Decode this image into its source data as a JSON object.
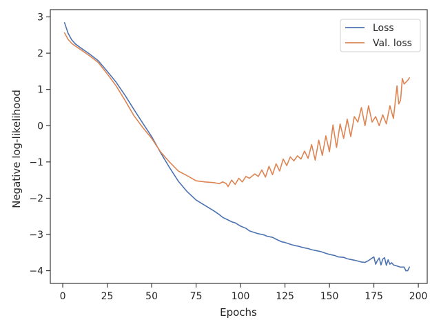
{
  "chart_data": {
    "type": "line",
    "title": "",
    "xlabel": "Epochs",
    "ylabel": "Negative log-likelihood",
    "xlim": [
      -7,
      205
    ],
    "ylim": [
      -4.35,
      3.2
    ],
    "xticks": [
      0,
      25,
      50,
      75,
      100,
      125,
      150,
      175,
      200
    ],
    "yticks": [
      -4,
      -3,
      -2,
      -1,
      0,
      1,
      2,
      3
    ],
    "xtick_labels": [
      "0",
      "25",
      "50",
      "75",
      "100",
      "125",
      "150",
      "175",
      "200"
    ],
    "ytick_labels": [
      "−4",
      "−3",
      "−2",
      "−1",
      "0",
      "1",
      "2",
      "3"
    ],
    "grid": false,
    "legend": "top-right",
    "series": [
      {
        "name": "Loss",
        "color": "#4c72b0",
        "x": [
          1,
          3,
          5,
          7,
          10,
          15,
          20,
          25,
          30,
          35,
          40,
          45,
          50,
          55,
          60,
          65,
          70,
          75,
          80,
          85,
          88,
          90,
          93,
          95,
          97,
          100,
          103,
          105,
          108,
          110,
          113,
          115,
          118,
          120,
          123,
          125,
          128,
          130,
          133,
          135,
          138,
          140,
          143,
          145,
          148,
          150,
          153,
          155,
          158,
          160,
          163,
          165,
          168,
          170,
          172,
          174,
          175,
          176,
          177,
          178,
          179,
          180,
          181,
          182,
          183,
          184,
          185,
          186,
          188,
          190,
          192,
          193,
          194,
          195
        ],
        "y": [
          2.84,
          2.55,
          2.37,
          2.26,
          2.15,
          1.98,
          1.79,
          1.5,
          1.2,
          0.84,
          0.45,
          0.07,
          -0.3,
          -0.74,
          -1.15,
          -1.53,
          -1.82,
          -2.05,
          -2.2,
          -2.35,
          -2.45,
          -2.53,
          -2.6,
          -2.65,
          -2.68,
          -2.77,
          -2.83,
          -2.9,
          -2.95,
          -2.98,
          -3.01,
          -3.05,
          -3.08,
          -3.13,
          -3.2,
          -3.22,
          -3.27,
          -3.3,
          -3.33,
          -3.36,
          -3.39,
          -3.42,
          -3.45,
          -3.47,
          -3.52,
          -3.55,
          -3.58,
          -3.62,
          -3.63,
          -3.67,
          -3.7,
          -3.72,
          -3.76,
          -3.77,
          -3.72,
          -3.65,
          -3.62,
          -3.82,
          -3.72,
          -3.65,
          -3.84,
          -3.68,
          -3.64,
          -3.85,
          -3.7,
          -3.82,
          -3.78,
          -3.84,
          -3.87,
          -3.9,
          -3.9,
          -4.0,
          -4.0,
          -3.9
        ]
      },
      {
        "name": "Val. loss",
        "color": "#dd8452",
        "x": [
          1,
          3,
          5,
          7,
          10,
          15,
          20,
          25,
          30,
          35,
          40,
          45,
          50,
          55,
          60,
          65,
          70,
          75,
          80,
          85,
          88,
          90,
          92,
          93,
          95,
          97,
          99,
          101,
          103,
          105,
          108,
          110,
          112,
          114,
          116,
          118,
          120,
          122,
          124,
          126,
          128,
          130,
          132,
          134,
          136,
          138,
          140,
          142,
          144,
          146,
          148,
          150,
          152,
          154,
          156,
          158,
          160,
          162,
          164,
          166,
          168,
          170,
          172,
          174,
          176,
          178,
          180,
          182,
          184,
          186,
          188,
          189,
          190,
          191,
          192,
          193,
          194,
          195
        ],
        "y": [
          2.56,
          2.38,
          2.27,
          2.2,
          2.1,
          1.93,
          1.74,
          1.43,
          1.1,
          0.7,
          0.28,
          -0.05,
          -0.35,
          -0.72,
          -1.0,
          -1.25,
          -1.38,
          -1.52,
          -1.55,
          -1.57,
          -1.6,
          -1.55,
          -1.6,
          -1.68,
          -1.5,
          -1.62,
          -1.45,
          -1.55,
          -1.4,
          -1.45,
          -1.33,
          -1.4,
          -1.22,
          -1.42,
          -1.12,
          -1.35,
          -1.05,
          -1.25,
          -0.92,
          -1.1,
          -0.86,
          -0.97,
          -0.83,
          -0.92,
          -0.7,
          -0.9,
          -0.52,
          -0.95,
          -0.4,
          -0.82,
          -0.28,
          -0.72,
          0.02,
          -0.6,
          0.05,
          -0.35,
          0.18,
          -0.3,
          0.25,
          0.1,
          0.5,
          0.0,
          0.55,
          0.1,
          0.25,
          0.0,
          0.3,
          0.05,
          0.55,
          0.2,
          1.1,
          0.6,
          0.7,
          1.3,
          1.15,
          1.2,
          1.25,
          1.32
        ]
      }
    ]
  }
}
